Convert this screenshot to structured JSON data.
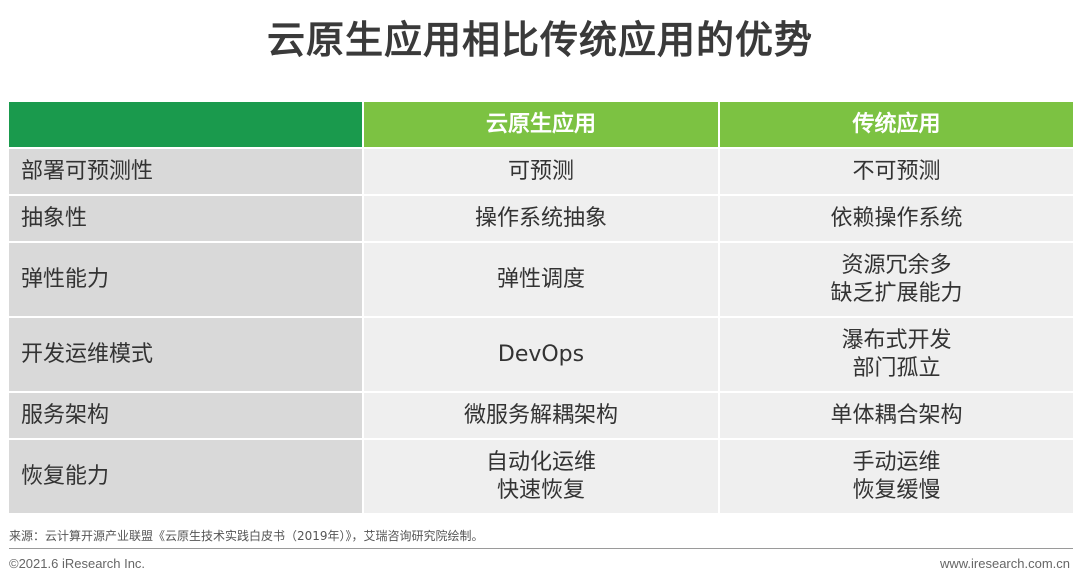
{
  "title": "云原生应用相比传统应用的优势",
  "table": {
    "headers": [
      "",
      "云原生应用",
      "传统应用"
    ],
    "rows": [
      {
        "label": "部署可预测性",
        "cloud": [
          "可预测"
        ],
        "traditional": [
          "不可预测"
        ]
      },
      {
        "label": "抽象性",
        "cloud": [
          "操作系统抽象"
        ],
        "traditional": [
          "依赖操作系统"
        ]
      },
      {
        "label": "弹性能力",
        "cloud": [
          "弹性调度"
        ],
        "traditional": [
          "资源冗余多",
          "缺乏扩展能力"
        ]
      },
      {
        "label": "开发运维模式",
        "cloud": [
          "DevOps"
        ],
        "traditional": [
          "瀑布式开发",
          "部门孤立"
        ]
      },
      {
        "label": "服务架构",
        "cloud": [
          "微服务解耦架构"
        ],
        "traditional": [
          "单体耦合架构"
        ]
      },
      {
        "label": "恢复能力",
        "cloud": [
          "自动化运维",
          "快速恢复"
        ],
        "traditional": [
          "手动运维",
          "恢复缓慢"
        ]
      }
    ]
  },
  "footer": {
    "source": "来源：云计算开源产业联盟《云原生技术实践白皮书（2019年）》，艾瑞咨询研究院绘制。",
    "copyright": "©2021.6 iResearch Inc.",
    "website": "www.iresearch.com.cn"
  },
  "colors": {
    "header_dark_green": "#1a9a4d",
    "header_light_green": "#7cc242",
    "row_label_bg": "#d9d9d9",
    "cell_bg": "#efefef"
  }
}
